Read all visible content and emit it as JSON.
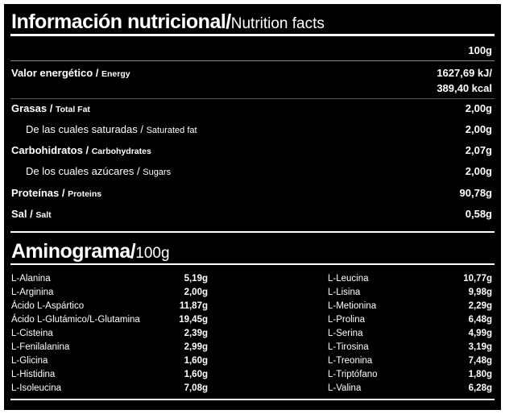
{
  "header": {
    "title_bold": "Información nutricional/",
    "title_light": "Nutrition facts"
  },
  "table": {
    "column": "100g",
    "rows": [
      {
        "label": "Valor energético / ",
        "label_en": "Energy",
        "values": [
          "1627,69 kJ/",
          "389,40 kcal"
        ],
        "sub": false
      },
      {
        "label": "Grasas / ",
        "label_en": "Total Fat",
        "values": [
          "2,00g"
        ],
        "sub": false
      },
      {
        "label": "De las cuales saturadas / ",
        "label_en": "Saturated fat",
        "values": [
          "2,00g"
        ],
        "sub": true
      },
      {
        "label": "Carbohidratos / ",
        "label_en": "Carbohydrates",
        "values": [
          "2,07g"
        ],
        "sub": false
      },
      {
        "label": "De los cuales azúcares / ",
        "label_en": "Sugars",
        "values": [
          "2,00g"
        ],
        "sub": true
      },
      {
        "label": "Proteínas / ",
        "label_en": "Proteins",
        "values": [
          "90,78g"
        ],
        "sub": false
      },
      {
        "label": "Sal / ",
        "label_en": "Salt",
        "values": [
          "0,58g"
        ],
        "sub": false
      }
    ]
  },
  "aminogram": {
    "title_bold": "Aminograma/",
    "title_light": "100g",
    "columns": [
      [
        [
          "L-Alanina",
          "5,19g"
        ],
        [
          "L-Arginina",
          "2,00g"
        ],
        [
          "Ácido L-Aspártico",
          "11,87g"
        ],
        [
          "Ácido L-Glutámico/L-Glutamina",
          "19,45g"
        ],
        [
          "L-Cisteina",
          "2,39g"
        ],
        [
          "L-Fenilalanina",
          "2,99g"
        ],
        [
          "L-Glicina",
          "1,60g"
        ],
        [
          "L-Histidina",
          "1,60g"
        ],
        [
          "L-Isoleucina",
          "7,08g"
        ]
      ],
      [
        [
          "L-Leucina",
          "10,77g"
        ],
        [
          "L-Lisina",
          "9,98g"
        ],
        [
          "L-Metionina",
          "2,29g"
        ],
        [
          "L-Prolina",
          "6,48g"
        ],
        [
          "L-Serina",
          "4,99g"
        ],
        [
          "L-Tirosina",
          "3,19g"
        ],
        [
          "L-Treonina",
          "7,48g"
        ],
        [
          "L-Triptófano",
          "1,80g"
        ],
        [
          "L-Valina",
          "6,28g"
        ]
      ]
    ]
  }
}
